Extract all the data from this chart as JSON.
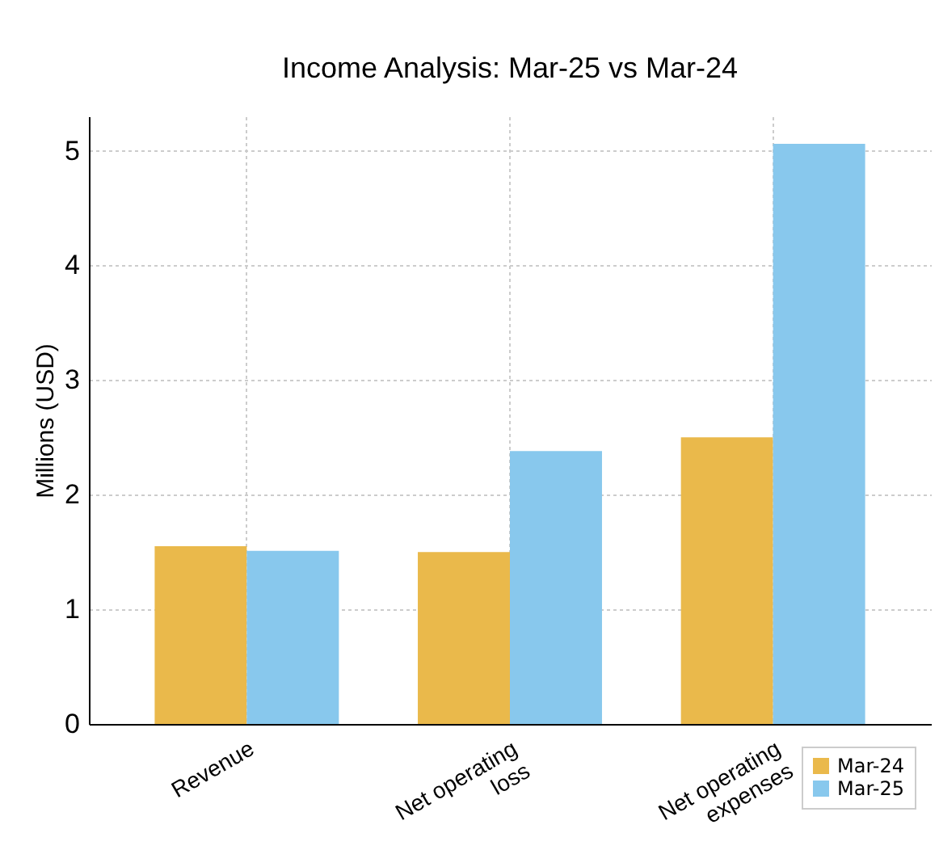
{
  "chart_data": {
    "type": "bar",
    "title": "Income Analysis: Mar-25 vs Mar-24",
    "ylabel": "Millions (USD)",
    "categories": [
      "Revenue",
      "Net operating\nloss",
      "Net operating\nexpenses"
    ],
    "series": [
      {
        "name": "Mar-24",
        "color": "#eab94b",
        "values": [
          1.55,
          1.5,
          2.5
        ]
      },
      {
        "name": "Mar-25",
        "color": "#88c8ed",
        "values": [
          1.51,
          2.38,
          5.06
        ]
      }
    ],
    "ylim": [
      0,
      5.3
    ],
    "yticks": [
      0,
      1,
      2,
      3,
      4,
      5
    ],
    "grid": true,
    "legend": "bottom right"
  }
}
